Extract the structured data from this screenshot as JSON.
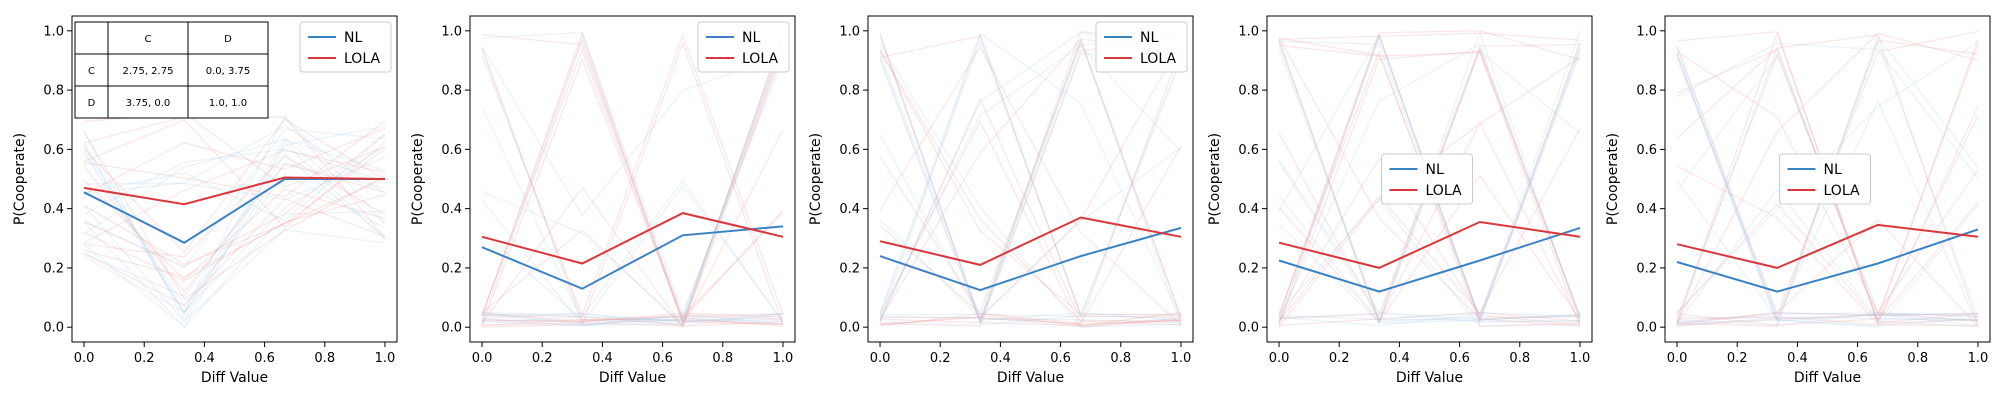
{
  "chart_data": [
    {
      "type": "line",
      "xlabel": "Diff Value",
      "ylabel": "P(Cooperate)",
      "xlim": [
        -0.04,
        1.04
      ],
      "ylim": [
        -0.05,
        1.05
      ],
      "xticks": [
        "0.0",
        "0.2",
        "0.4",
        "0.6",
        "0.8",
        "1.0"
      ],
      "yticks": [
        "0.0",
        "0.2",
        "0.4",
        "0.6",
        "0.8",
        "1.0"
      ],
      "x": [
        0.0,
        0.333,
        0.667,
        1.0
      ],
      "legend_position": "top-right",
      "series": [
        {
          "name": "NL",
          "color": "#3b82c4",
          "values": [
            0.455,
            0.285,
            0.5,
            0.5
          ]
        },
        {
          "name": "LOLA",
          "color": "#d9373b",
          "values": [
            0.47,
            0.415,
            0.505,
            0.5
          ]
        }
      ],
      "payoff_table": {
        "col_headers": [
          "",
          "C",
          "D"
        ],
        "rows": [
          {
            "label": "C",
            "cells": [
              "2.75, 2.75",
              "0.0, 3.75"
            ]
          },
          {
            "label": "D",
            "cells": [
              "3.75, 0.0",
              "1.0, 1.0"
            ]
          }
        ]
      }
    },
    {
      "type": "line",
      "xlabel": "Diff Value",
      "ylabel": "P(Cooperate)",
      "xlim": [
        -0.04,
        1.04
      ],
      "ylim": [
        -0.05,
        1.05
      ],
      "xticks": [
        "0.0",
        "0.2",
        "0.4",
        "0.6",
        "0.8",
        "1.0"
      ],
      "yticks": [
        "0.0",
        "0.2",
        "0.4",
        "0.6",
        "0.8",
        "1.0"
      ],
      "x": [
        0.0,
        0.333,
        0.667,
        1.0
      ],
      "legend_position": "top-right",
      "series": [
        {
          "name": "NL",
          "color": "#3b82c4",
          "values": [
            0.27,
            0.13,
            0.31,
            0.34
          ]
        },
        {
          "name": "LOLA",
          "color": "#d9373b",
          "values": [
            0.305,
            0.215,
            0.385,
            0.305
          ]
        }
      ]
    },
    {
      "type": "line",
      "xlabel": "Diff Value",
      "ylabel": "P(Cooperate)",
      "xlim": [
        -0.04,
        1.04
      ],
      "ylim": [
        -0.05,
        1.05
      ],
      "xticks": [
        "0.0",
        "0.2",
        "0.4",
        "0.6",
        "0.8",
        "1.0"
      ],
      "yticks": [
        "0.0",
        "0.2",
        "0.4",
        "0.6",
        "0.8",
        "1.0"
      ],
      "x": [
        0.0,
        0.333,
        0.667,
        1.0
      ],
      "legend_position": "top-right",
      "series": [
        {
          "name": "NL",
          "color": "#3b82c4",
          "values": [
            0.24,
            0.125,
            0.24,
            0.335
          ]
        },
        {
          "name": "LOLA",
          "color": "#d9373b",
          "values": [
            0.29,
            0.21,
            0.37,
            0.305
          ]
        }
      ]
    },
    {
      "type": "line",
      "xlabel": "Diff Value",
      "ylabel": "P(Cooperate)",
      "xlim": [
        -0.04,
        1.04
      ],
      "ylim": [
        -0.05,
        1.05
      ],
      "xticks": [
        "0.0",
        "0.2",
        "0.4",
        "0.6",
        "0.8",
        "1.0"
      ],
      "yticks": [
        "0.0",
        "0.2",
        "0.4",
        "0.6",
        "0.8",
        "1.0"
      ],
      "x": [
        0.0,
        0.333,
        0.667,
        1.0
      ],
      "legend_position": "center",
      "series": [
        {
          "name": "NL",
          "color": "#3b82c4",
          "values": [
            0.225,
            0.12,
            0.225,
            0.335
          ]
        },
        {
          "name": "LOLA",
          "color": "#d9373b",
          "values": [
            0.285,
            0.2,
            0.355,
            0.305
          ]
        }
      ]
    },
    {
      "type": "line",
      "xlabel": "Diff Value",
      "ylabel": "P(Cooperate)",
      "xlim": [
        -0.04,
        1.04
      ],
      "ylim": [
        -0.05,
        1.05
      ],
      "xticks": [
        "0.0",
        "0.2",
        "0.4",
        "0.6",
        "0.8",
        "1.0"
      ],
      "yticks": [
        "0.0",
        "0.2",
        "0.4",
        "0.6",
        "0.8",
        "1.0"
      ],
      "x": [
        0.0,
        0.333,
        0.667,
        1.0
      ],
      "legend_position": "center",
      "series": [
        {
          "name": "NL",
          "color": "#3b82c4",
          "values": [
            0.22,
            0.12,
            0.215,
            0.33
          ]
        },
        {
          "name": "LOLA",
          "color": "#d9373b",
          "values": [
            0.28,
            0.2,
            0.345,
            0.305
          ]
        }
      ]
    }
  ]
}
